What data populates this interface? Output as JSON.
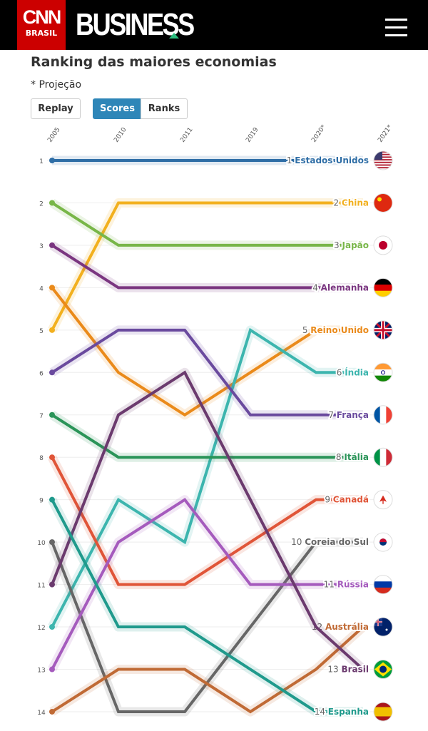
{
  "header": {
    "logo_text": "CNN",
    "logo_sub": "BRASIL",
    "brand": "BUSINESS"
  },
  "title": "Ranking das maiores economias",
  "subtitle": "* Projeção",
  "buttons": {
    "replay": "Replay",
    "scores": "Scores",
    "ranks": "Ranks"
  },
  "chart_data": {
    "type": "bump",
    "title": "Ranking das maiores economias",
    "years": [
      "2005",
      "2010",
      "2011",
      "2019",
      "2020*",
      "2021*"
    ],
    "rank_ticks": [
      "1",
      "2",
      "3",
      "4",
      "5",
      "6",
      "7",
      "8",
      "9",
      "10",
      "11",
      "12",
      "13",
      "14"
    ],
    "ylim": [
      1,
      14
    ],
    "series": [
      {
        "name": "Estados Unidos",
        "color": "#2f6ea6",
        "ranks": [
          1,
          1,
          1,
          1,
          1,
          1
        ],
        "flag": "us-flag"
      },
      {
        "name": "China",
        "color": "#f2b01e",
        "ranks": [
          5,
          2,
          2,
          2,
          2,
          2
        ],
        "flag": "china-flag"
      },
      {
        "name": "Japão",
        "color": "#78b648",
        "ranks": [
          2,
          3,
          3,
          3,
          3,
          3
        ],
        "flag": "japan-flag"
      },
      {
        "name": "Alemanha",
        "color": "#7a3580",
        "ranks": [
          3,
          4,
          4,
          4,
          4,
          4
        ],
        "flag": "germany-flag"
      },
      {
        "name": "Reino Unido",
        "color": "#ea8a1a",
        "ranks": [
          4,
          6,
          7,
          6,
          5,
          5
        ],
        "flag": "uk-flag"
      },
      {
        "name": "Índia",
        "color": "#3cb5ae",
        "ranks": [
          12,
          9,
          10,
          5,
          6,
          6
        ],
        "flag": "india-flag"
      },
      {
        "name": "França",
        "color": "#6a4a9e",
        "ranks": [
          6,
          5,
          5,
          7,
          7,
          7
        ],
        "flag": "france-flag"
      },
      {
        "name": "Itália",
        "color": "#2a9458",
        "ranks": [
          7,
          8,
          8,
          8,
          8,
          8
        ],
        "flag": "italy-flag"
      },
      {
        "name": "Canadá",
        "color": "#e05538",
        "ranks": [
          8,
          11,
          11,
          10,
          9,
          9
        ],
        "flag": "canada-flag"
      },
      {
        "name": "Coreia do Sul",
        "color": "#666666",
        "ranks": [
          10,
          14,
          14,
          12,
          10,
          10
        ],
        "flag": "korea-flag"
      },
      {
        "name": "Rússia",
        "color": "#a55bbd",
        "ranks": [
          13,
          10,
          9,
          11,
          11,
          11
        ],
        "flag": "russia-flag"
      },
      {
        "name": "Austrália",
        "color": "#c06a35",
        "ranks": [
          14,
          13,
          13,
          14,
          13,
          12
        ],
        "flag": "australia-flag"
      },
      {
        "name": "Brasil",
        "color": "#6b3a6e",
        "ranks": [
          11,
          7,
          6,
          9,
          12,
          13
        ],
        "flag": "brazil-flag"
      },
      {
        "name": "Espanha",
        "color": "#1f9a8c",
        "ranks": [
          9,
          12,
          12,
          13,
          14,
          14
        ],
        "flag": "spain-flag"
      }
    ]
  }
}
